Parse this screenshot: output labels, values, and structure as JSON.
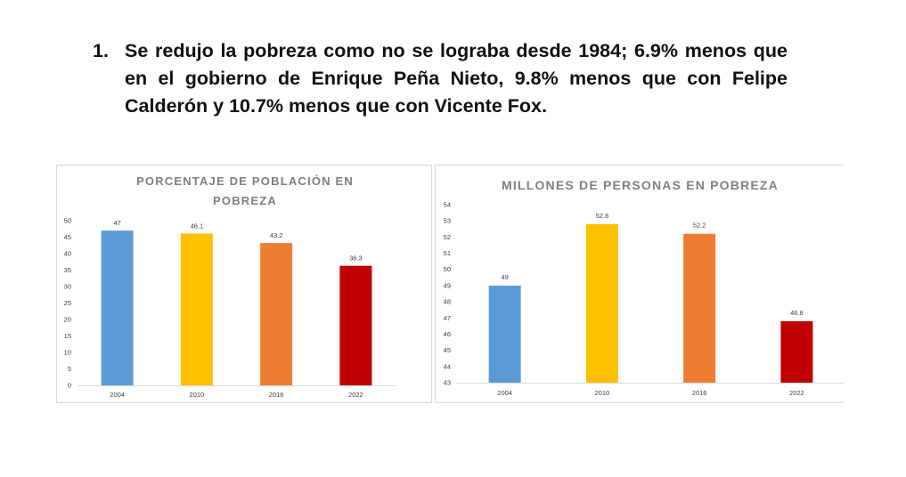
{
  "heading": {
    "number": "1.",
    "text": "Se redujo la pobreza como no se lograba desde 1984; 6.9% menos que en el gobierno de Enrique Peña Nieto, 9.8% menos que con Felipe Calderón y 10.7% menos que con Vicente Fox."
  },
  "chart_data": [
    {
      "type": "bar",
      "title_lines": [
        "PORCENTAJE DE POBLACIÓN EN",
        "POBREZA"
      ],
      "categories": [
        "2004",
        "2010",
        "2016",
        "2022"
      ],
      "values": [
        47,
        46.1,
        43.2,
        36.3
      ],
      "data_labels": [
        "47",
        "46.1",
        "43.2",
        "36.3"
      ],
      "colors": [
        "#5b9bd5",
        "#ffc000",
        "#ed7d31",
        "#c00000"
      ],
      "ylim": [
        0,
        50
      ],
      "yticks": [
        0,
        5,
        10,
        15,
        20,
        25,
        30,
        35,
        40,
        45,
        50
      ],
      "grid": false,
      "legend": "none"
    },
    {
      "type": "bar",
      "title_lines": [
        "MILLONES DE PERSONAS EN POBREZA"
      ],
      "categories": [
        "2004",
        "2010",
        "2016",
        "2022"
      ],
      "values": [
        49,
        52.8,
        52.2,
        46.8
      ],
      "data_labels": [
        "49",
        "52.8",
        "52.2",
        "46.8"
      ],
      "colors": [
        "#5b9bd5",
        "#ffc000",
        "#ed7d31",
        "#c00000"
      ],
      "ylim": [
        43,
        54
      ],
      "yticks": [
        43,
        44,
        45,
        46,
        47,
        48,
        49,
        50,
        51,
        52,
        53,
        54
      ],
      "grid": false,
      "legend": "none"
    }
  ]
}
